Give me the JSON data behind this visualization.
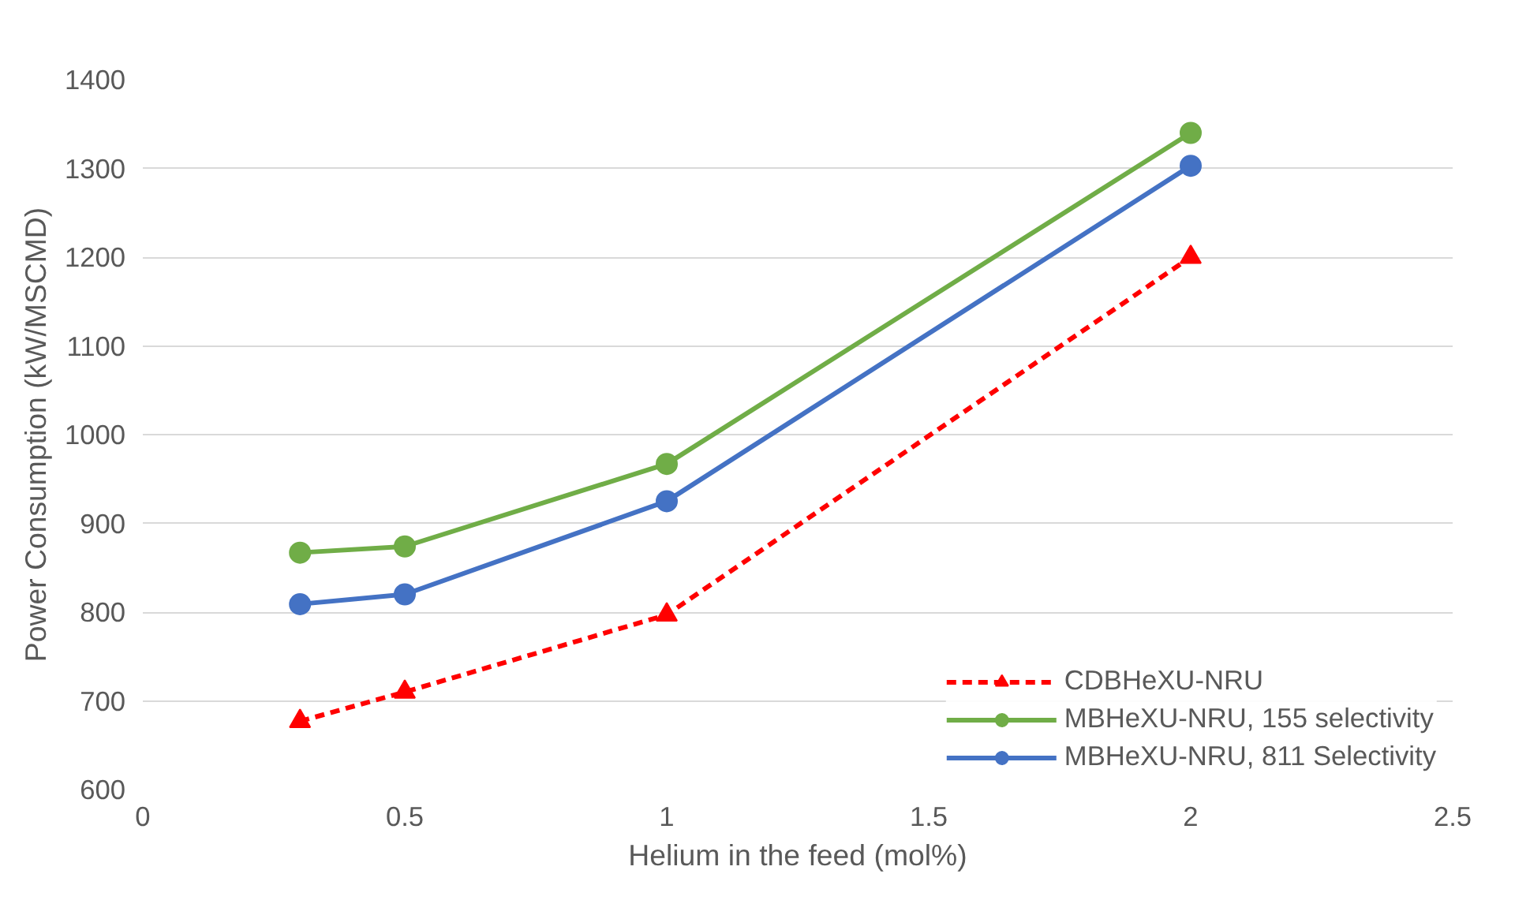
{
  "chart_data": {
    "type": "line",
    "xlabel": "Helium in the feed (mol%)",
    "ylabel": "Power Consumption (kW/MSCMD)",
    "x": [
      0.3,
      0.5,
      1,
      2
    ],
    "series": [
      {
        "name": "CDBHeXU-NRU",
        "color": "#ff0000",
        "values": [
          677,
          710,
          797,
          1200
        ],
        "marker": "triangle",
        "line_style": "dashed"
      },
      {
        "name": "MBHeXU-NRU, 155 selectivity",
        "color": "#70ad47",
        "values": [
          867,
          874,
          967,
          1340
        ],
        "marker": "circle",
        "line_style": "solid"
      },
      {
        "name": "MBHeXU-NRU, 811 Selectivity",
        "color": "#4472c4",
        "values": [
          809,
          820,
          925,
          1303
        ],
        "marker": "circle",
        "line_style": "solid"
      }
    ],
    "xlim": [
      0,
      2.5
    ],
    "xticks": [
      0,
      0.5,
      1,
      1.5,
      2,
      2.5
    ],
    "ylim": [
      600,
      1400
    ],
    "yticks": [
      600,
      700,
      800,
      900,
      1000,
      1100,
      1200,
      1300,
      1400
    ],
    "grid": "y",
    "legend": "bottom right"
  }
}
